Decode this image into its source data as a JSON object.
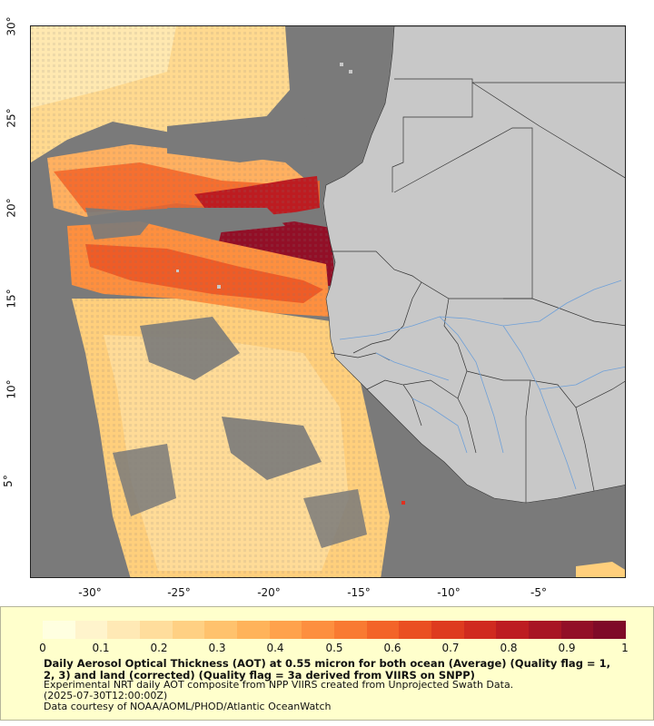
{
  "map": {
    "x_ticks": [
      "-30°",
      "-25°",
      "-20°",
      "-15°",
      "-10°",
      "-5°"
    ],
    "y_ticks": [
      "30°",
      "25°",
      "20°",
      "15°",
      "10°",
      "5°"
    ],
    "colors": {
      "ocean_nodata": "#7a7a7a",
      "land": "#c8c8c8",
      "borders": "#333333",
      "rivers": "#6fa0d8"
    }
  },
  "chart_data": {
    "type": "heatmap",
    "variable": "Aerosol Optical Thickness at 0.55 micron",
    "xlim": [
      -33,
      -0.5
    ],
    "ylim": [
      0.0,
      30.5
    ],
    "colorbar_range": [
      0,
      1
    ],
    "colorbar_ticks": [
      "0",
      "0.1",
      "0.2",
      "0.3",
      "0.4",
      "0.5",
      "0.6",
      "0.7",
      "0.8",
      "0.9",
      "1"
    ],
    "colorbar_colors": [
      "#ffffe0",
      "#fff4cc",
      "#ffe9b5",
      "#ffdd9c",
      "#ffd083",
      "#ffc26d",
      "#ffb35a",
      "#ffa24c",
      "#fd8f3f",
      "#f97a32",
      "#f36428",
      "#ea4f22",
      "#de3b1f",
      "#d02a1f",
      "#bd1c21",
      "#a81524",
      "#920f27",
      "#7f0a28"
    ]
  },
  "legend": {
    "title": "Daily Aerosol Optical Thickness (AOT) at 0.55 micron for both ocean (Average) (Quality flag = 1, 2, 3) and land (corrected) (Quality flag = 3a derived from VIIRS on SNPP)",
    "line1": "Experimental NRT daily AOT composite from NPP VIIRS created from Unprojected Swath Data.",
    "line2": "(2025-07-30T12:00:00Z)",
    "line3": "Data courtesy of NOAA/AOML/PHOD/Atlantic OceanWatch"
  }
}
